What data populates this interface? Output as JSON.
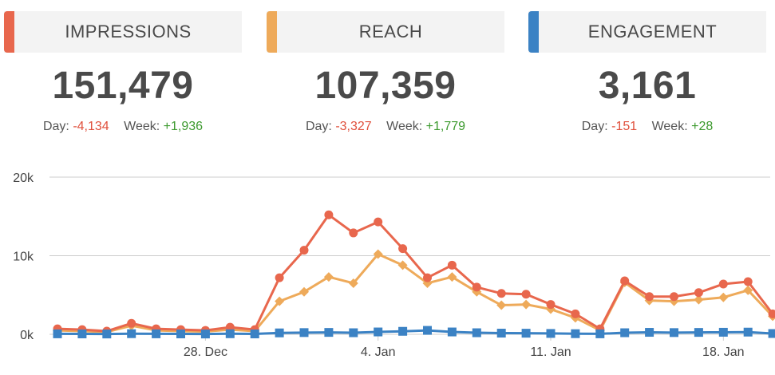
{
  "cards": [
    {
      "title": "IMPRESSIONS",
      "value": "151,479",
      "day_label": "Day:",
      "day_value": "-4,134",
      "week_label": "Week:",
      "week_value": "+1,936",
      "color": "#e8674d"
    },
    {
      "title": "REACH",
      "value": "107,359",
      "day_label": "Day:",
      "day_value": "-3,327",
      "week_label": "Week:",
      "week_value": "+1,779",
      "color": "#eeaa5a"
    },
    {
      "title": "ENGAGEMENT",
      "value": "3,161",
      "day_label": "Day:",
      "day_value": "-151",
      "week_label": "Week:",
      "week_value": "+28",
      "color": "#3b82c4"
    }
  ],
  "chart_data": {
    "type": "line",
    "ylim": [
      0,
      20000
    ],
    "y_ticks": [
      {
        "value": 0,
        "label": "0k"
      },
      {
        "value": 10000,
        "label": "10k"
      },
      {
        "value": 20000,
        "label": "20k"
      }
    ],
    "x_ticks": [
      {
        "index": 6,
        "label": "28. Dec"
      },
      {
        "index": 13,
        "label": "4. Jan"
      },
      {
        "index": 20,
        "label": "11. Jan"
      },
      {
        "index": 27,
        "label": "18. Jan"
      }
    ],
    "series": [
      {
        "name": "Reach",
        "color": "#eeaa5a",
        "marker": "diamond",
        "values": [
          500,
          400,
          300,
          1100,
          500,
          400,
          350,
          600,
          400,
          4200,
          5400,
          7300,
          6500,
          10200,
          8800,
          6500,
          7300,
          5400,
          3700,
          3800,
          3200,
          2100,
          500,
          6600,
          4300,
          4200,
          4400,
          4700,
          5600,
          2300
        ]
      },
      {
        "name": "Impressions",
        "color": "#e8674d",
        "marker": "circle",
        "values": [
          700,
          600,
          400,
          1400,
          700,
          600,
          500,
          900,
          600,
          7200,
          10700,
          15200,
          12900,
          14300,
          10900,
          7200,
          8800,
          6000,
          5200,
          5100,
          3800,
          2600,
          700,
          6800,
          4800,
          4800,
          5300,
          6400,
          6700,
          2600
        ]
      },
      {
        "name": "Engagement",
        "color": "#3b82c4",
        "marker": "square",
        "values": [
          60,
          50,
          40,
          80,
          60,
          50,
          40,
          70,
          50,
          180,
          220,
          240,
          200,
          300,
          380,
          500,
          300,
          200,
          150,
          140,
          110,
          80,
          60,
          200,
          250,
          220,
          240,
          260,
          280,
          100
        ]
      }
    ]
  }
}
